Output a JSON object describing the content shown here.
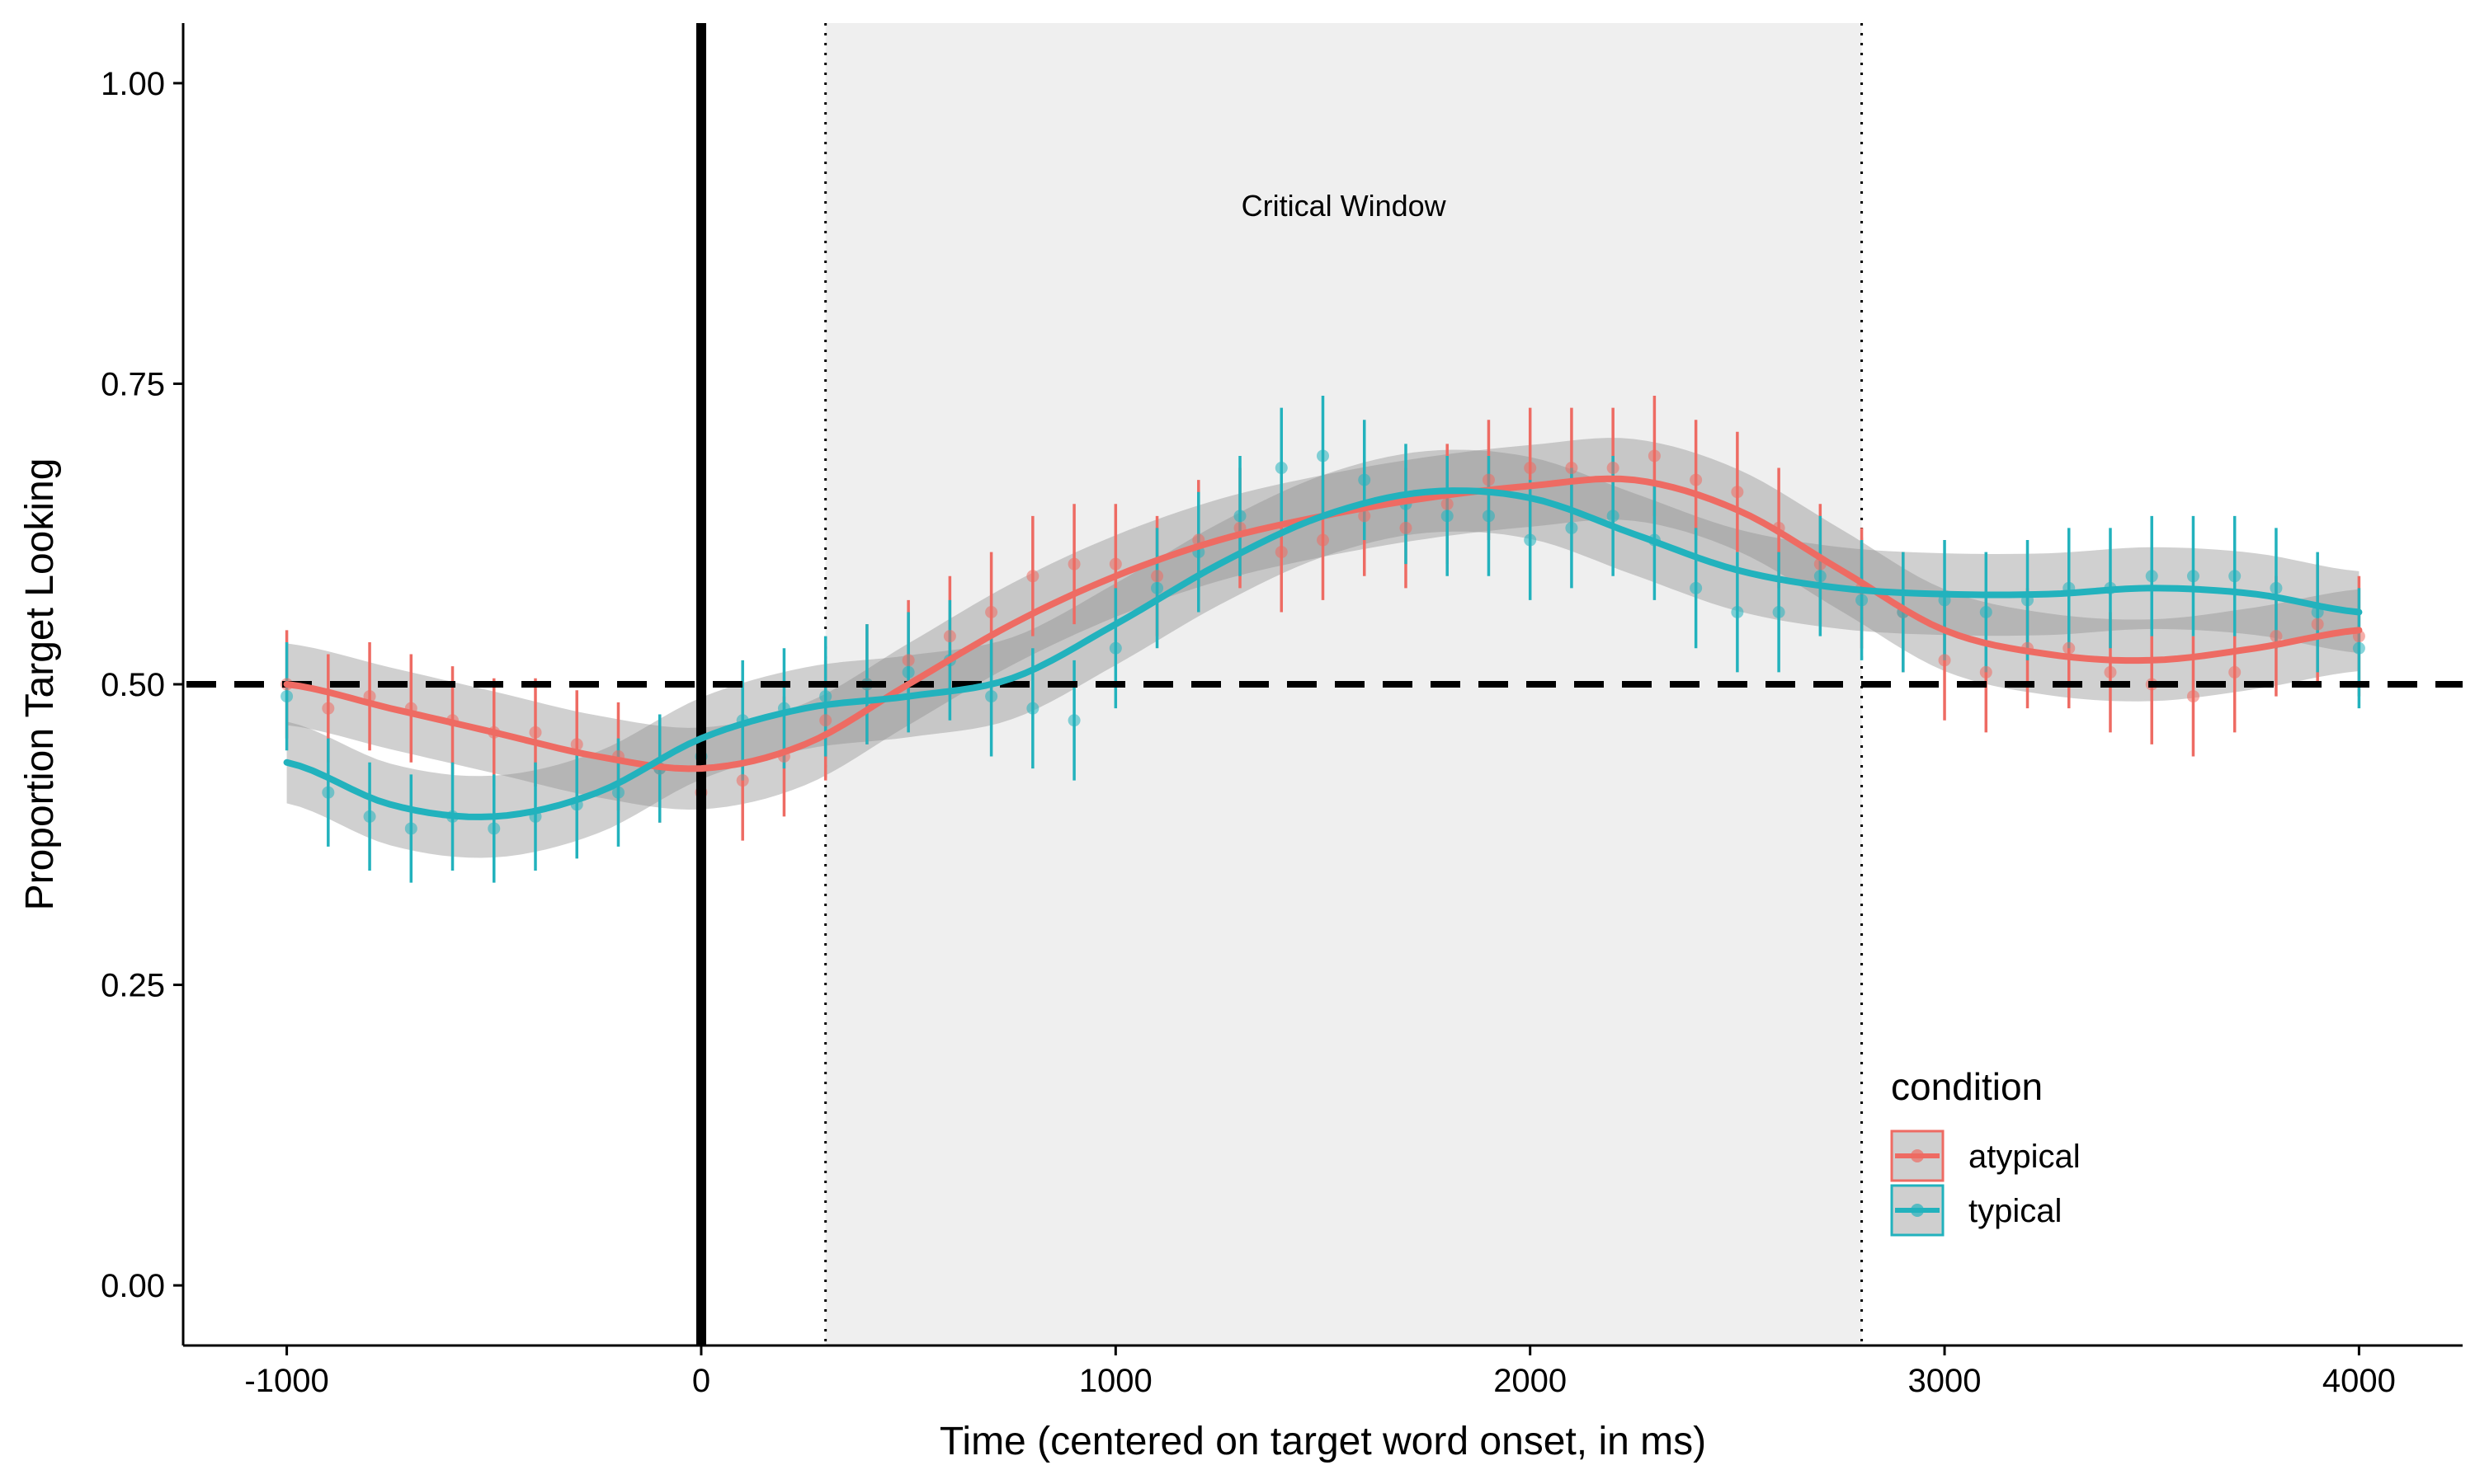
{
  "chart_data": {
    "type": "line",
    "title": "",
    "xlabel": "Time (centered on target word onset, in ms)",
    "ylabel": "Proportion Target Looking",
    "xlim": [
      -1250,
      4250
    ],
    "ylim": [
      -0.05,
      1.05
    ],
    "x_ticks": [
      -1000,
      0,
      1000,
      2000,
      3000,
      4000
    ],
    "x_tick_labels": [
      "-1000",
      "0",
      "1000",
      "2000",
      "3000",
      "4000"
    ],
    "y_ticks": [
      0,
      0.25,
      0.5,
      0.75,
      1
    ],
    "y_tick_labels": [
      "0.00",
      "0.25",
      "0.50",
      "0.75",
      "1.00"
    ],
    "grid": false,
    "reference_lines": {
      "chance_level": 0.5,
      "target_word_onset": 0,
      "critical_window_start": 300,
      "critical_window_end": 2800
    },
    "critical_window": {
      "start": 300,
      "end": 2800,
      "label": "Critical Window"
    },
    "legend": {
      "title": "condition",
      "position": "bottom-right",
      "entries": [
        "atypical",
        "typical"
      ]
    },
    "series": [
      {
        "name": "atypical",
        "color": "#ee6b63",
        "smooth": {
          "x": [
            -1000,
            -750,
            -500,
            -250,
            0,
            250,
            500,
            750,
            1000,
            1250,
            1500,
            1750,
            2000,
            2250,
            2500,
            2750,
            3000,
            3250,
            3500,
            3750,
            4000
          ],
          "y": [
            0.5,
            0.48,
            0.46,
            0.44,
            0.43,
            0.45,
            0.5,
            0.55,
            0.59,
            0.62,
            0.64,
            0.655,
            0.665,
            0.67,
            0.645,
            0.595,
            0.545,
            0.525,
            0.52,
            0.53,
            0.545
          ]
        },
        "points": {
          "x": [
            -1000,
            -900,
            -800,
            -700,
            -600,
            -500,
            -400,
            -300,
            -200,
            -100,
            0,
            100,
            200,
            300,
            400,
            500,
            600,
            700,
            800,
            900,
            1000,
            1100,
            1200,
            1300,
            1400,
            1500,
            1600,
            1700,
            1800,
            1900,
            2000,
            2100,
            2200,
            2300,
            2400,
            2500,
            2600,
            2700,
            2800,
            2900,
            3000,
            3100,
            3200,
            3300,
            3400,
            3500,
            3600,
            3700,
            3800,
            3900,
            4000
          ],
          "y": [
            0.5,
            0.48,
            0.49,
            0.48,
            0.47,
            0.46,
            0.46,
            0.45,
            0.44,
            0.43,
            0.41,
            0.42,
            0.44,
            0.47,
            0.5,
            0.52,
            0.54,
            0.56,
            0.59,
            0.6,
            0.6,
            0.59,
            0.62,
            0.63,
            0.61,
            0.62,
            0.64,
            0.63,
            0.65,
            0.67,
            0.68,
            0.68,
            0.68,
            0.69,
            0.67,
            0.66,
            0.63,
            0.6,
            0.58,
            0.56,
            0.52,
            0.51,
            0.53,
            0.53,
            0.51,
            0.5,
            0.49,
            0.51,
            0.54,
            0.55,
            0.54
          ],
          "err": [
            0.045,
            0.045,
            0.045,
            0.045,
            0.045,
            0.045,
            0.045,
            0.045,
            0.045,
            0.045,
            0.05,
            0.05,
            0.05,
            0.05,
            0.05,
            0.05,
            0.05,
            0.05,
            0.05,
            0.05,
            0.05,
            0.05,
            0.05,
            0.05,
            0.05,
            0.05,
            0.05,
            0.05,
            0.05,
            0.05,
            0.05,
            0.05,
            0.05,
            0.05,
            0.05,
            0.05,
            0.05,
            0.05,
            0.05,
            0.05,
            0.05,
            0.05,
            0.05,
            0.05,
            0.05,
            0.05,
            0.05,
            0.05,
            0.05,
            0.05,
            0.05
          ]
        }
      },
      {
        "name": "typical",
        "color": "#22b2bd",
        "smooth": {
          "x": [
            -1000,
            -750,
            -500,
            -250,
            0,
            250,
            500,
            750,
            1000,
            1250,
            1500,
            1750,
            2000,
            2250,
            2500,
            2750,
            3000,
            3250,
            3500,
            3750,
            4000
          ],
          "y": [
            0.435,
            0.4,
            0.39,
            0.41,
            0.455,
            0.48,
            0.49,
            0.505,
            0.55,
            0.6,
            0.64,
            0.66,
            0.655,
            0.625,
            0.595,
            0.58,
            0.575,
            0.575,
            0.58,
            0.575,
            0.56
          ]
        },
        "points": {
          "x": [
            -1000,
            -900,
            -800,
            -700,
            -600,
            -500,
            -400,
            -300,
            -200,
            -100,
            0,
            100,
            200,
            300,
            400,
            500,
            600,
            700,
            800,
            900,
            1000,
            1100,
            1200,
            1300,
            1400,
            1500,
            1600,
            1700,
            1800,
            1900,
            2000,
            2100,
            2200,
            2300,
            2400,
            2500,
            2600,
            2700,
            2800,
            2900,
            3000,
            3100,
            3200,
            3300,
            3400,
            3500,
            3600,
            3700,
            3800,
            3900,
            4000
          ],
          "y": [
            0.49,
            0.41,
            0.39,
            0.38,
            0.39,
            0.38,
            0.39,
            0.4,
            0.41,
            0.43,
            0.44,
            0.47,
            0.48,
            0.49,
            0.5,
            0.51,
            0.52,
            0.49,
            0.48,
            0.47,
            0.53,
            0.58,
            0.61,
            0.64,
            0.68,
            0.69,
            0.67,
            0.65,
            0.64,
            0.64,
            0.62,
            0.63,
            0.64,
            0.62,
            0.58,
            0.56,
            0.56,
            0.59,
            0.57,
            0.56,
            0.57,
            0.56,
            0.57,
            0.58,
            0.58,
            0.59,
            0.59,
            0.59,
            0.58,
            0.56,
            0.53
          ],
          "err": [
            0.045,
            0.045,
            0.045,
            0.045,
            0.045,
            0.045,
            0.045,
            0.045,
            0.045,
            0.045,
            0.05,
            0.05,
            0.05,
            0.05,
            0.05,
            0.05,
            0.05,
            0.05,
            0.05,
            0.05,
            0.05,
            0.05,
            0.05,
            0.05,
            0.05,
            0.05,
            0.05,
            0.05,
            0.05,
            0.05,
            0.05,
            0.05,
            0.05,
            0.05,
            0.05,
            0.05,
            0.05,
            0.05,
            0.05,
            0.05,
            0.05,
            0.05,
            0.05,
            0.05,
            0.05,
            0.05,
            0.05,
            0.05,
            0.05,
            0.05,
            0.05
          ]
        }
      }
    ]
  }
}
